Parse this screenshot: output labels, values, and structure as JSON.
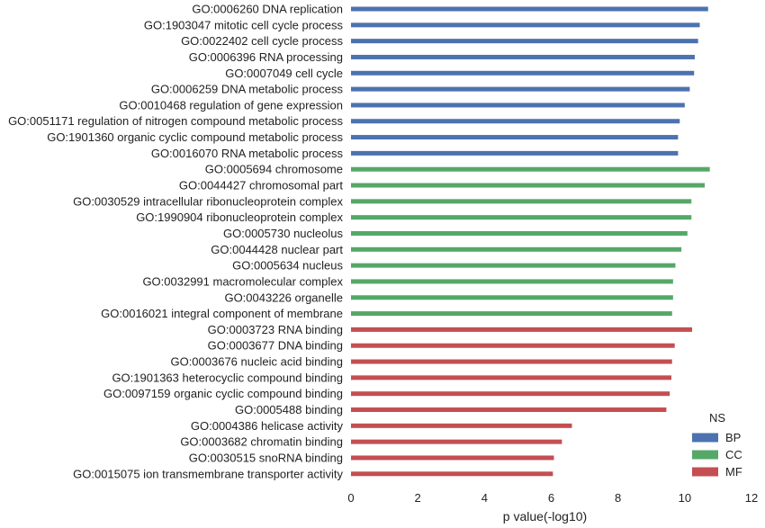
{
  "chart_data": {
    "type": "bar",
    "orientation": "horizontal",
    "xlabel": "p value(-log10)",
    "ylabel": "",
    "xlim": [
      0,
      12
    ],
    "xticks": [
      0,
      2,
      4,
      6,
      8,
      10,
      12
    ],
    "grid": false,
    "legend": {
      "title": "NS",
      "placement": "lower-right",
      "entries": [
        {
          "name": "BP",
          "color": "#4c72b0"
        },
        {
          "name": "CC",
          "color": "#55a868"
        },
        {
          "name": "MF",
          "color": "#c44e52"
        }
      ]
    },
    "bars": [
      {
        "label": "GO:0006260 DNA replication",
        "value": 10.7,
        "group": "BP"
      },
      {
        "label": "GO:1903047 mitotic cell cycle process",
        "value": 10.45,
        "group": "BP"
      },
      {
        "label": "GO:0022402 cell cycle process",
        "value": 10.4,
        "group": "BP"
      },
      {
        "label": "GO:0006396 RNA processing",
        "value": 10.3,
        "group": "BP"
      },
      {
        "label": "GO:0007049 cell cycle",
        "value": 10.28,
        "group": "BP"
      },
      {
        "label": "GO:0006259 DNA metabolic process",
        "value": 10.15,
        "group": "BP"
      },
      {
        "label": "GO:0010468 regulation of gene expression",
        "value": 10.0,
        "group": "BP"
      },
      {
        "label": "GO:0051171 regulation of nitrogen compound metabolic process",
        "value": 9.85,
        "group": "BP"
      },
      {
        "label": "GO:1901360 organic cyclic compound metabolic process",
        "value": 9.8,
        "group": "BP"
      },
      {
        "label": "GO:0016070 RNA metabolic process",
        "value": 9.8,
        "group": "BP"
      },
      {
        "label": "GO:0005694 chromosome",
        "value": 10.75,
        "group": "CC"
      },
      {
        "label": "GO:0044427 chromosomal part",
        "value": 10.6,
        "group": "CC"
      },
      {
        "label": "GO:0030529 intracellular ribonucleoprotein complex",
        "value": 10.2,
        "group": "CC"
      },
      {
        "label": "GO:1990904 ribonucleoprotein complex",
        "value": 10.2,
        "group": "CC"
      },
      {
        "label": "GO:0005730 nucleolus",
        "value": 10.08,
        "group": "CC"
      },
      {
        "label": "GO:0044428 nuclear part",
        "value": 9.9,
        "group": "CC"
      },
      {
        "label": "GO:0005634 nucleus",
        "value": 9.72,
        "group": "CC"
      },
      {
        "label": "GO:0032991 macromolecular complex",
        "value": 9.65,
        "group": "CC"
      },
      {
        "label": "GO:0043226 organelle",
        "value": 9.65,
        "group": "CC"
      },
      {
        "label": "GO:0016021 integral component of membrane",
        "value": 9.62,
        "group": "CC"
      },
      {
        "label": "GO:0003723 RNA binding",
        "value": 10.22,
        "group": "MF"
      },
      {
        "label": "GO:0003677 DNA binding",
        "value": 9.7,
        "group": "MF"
      },
      {
        "label": "GO:0003676 nucleic acid binding",
        "value": 9.62,
        "group": "MF"
      },
      {
        "label": "GO:1901363 heterocyclic compound binding",
        "value": 9.6,
        "group": "MF"
      },
      {
        "label": "GO:0097159 organic cyclic compound binding",
        "value": 9.55,
        "group": "MF"
      },
      {
        "label": "GO:0005488 binding",
        "value": 9.45,
        "group": "MF"
      },
      {
        "label": "GO:0004386 helicase activity",
        "value": 6.62,
        "group": "MF"
      },
      {
        "label": "GO:0003682 chromatin binding",
        "value": 6.32,
        "group": "MF"
      },
      {
        "label": "GO:0030515 snoRNA binding",
        "value": 6.08,
        "group": "MF"
      },
      {
        "label": "GO:0015075 ion transmembrane transporter activity",
        "value": 6.05,
        "group": "MF"
      }
    ]
  }
}
